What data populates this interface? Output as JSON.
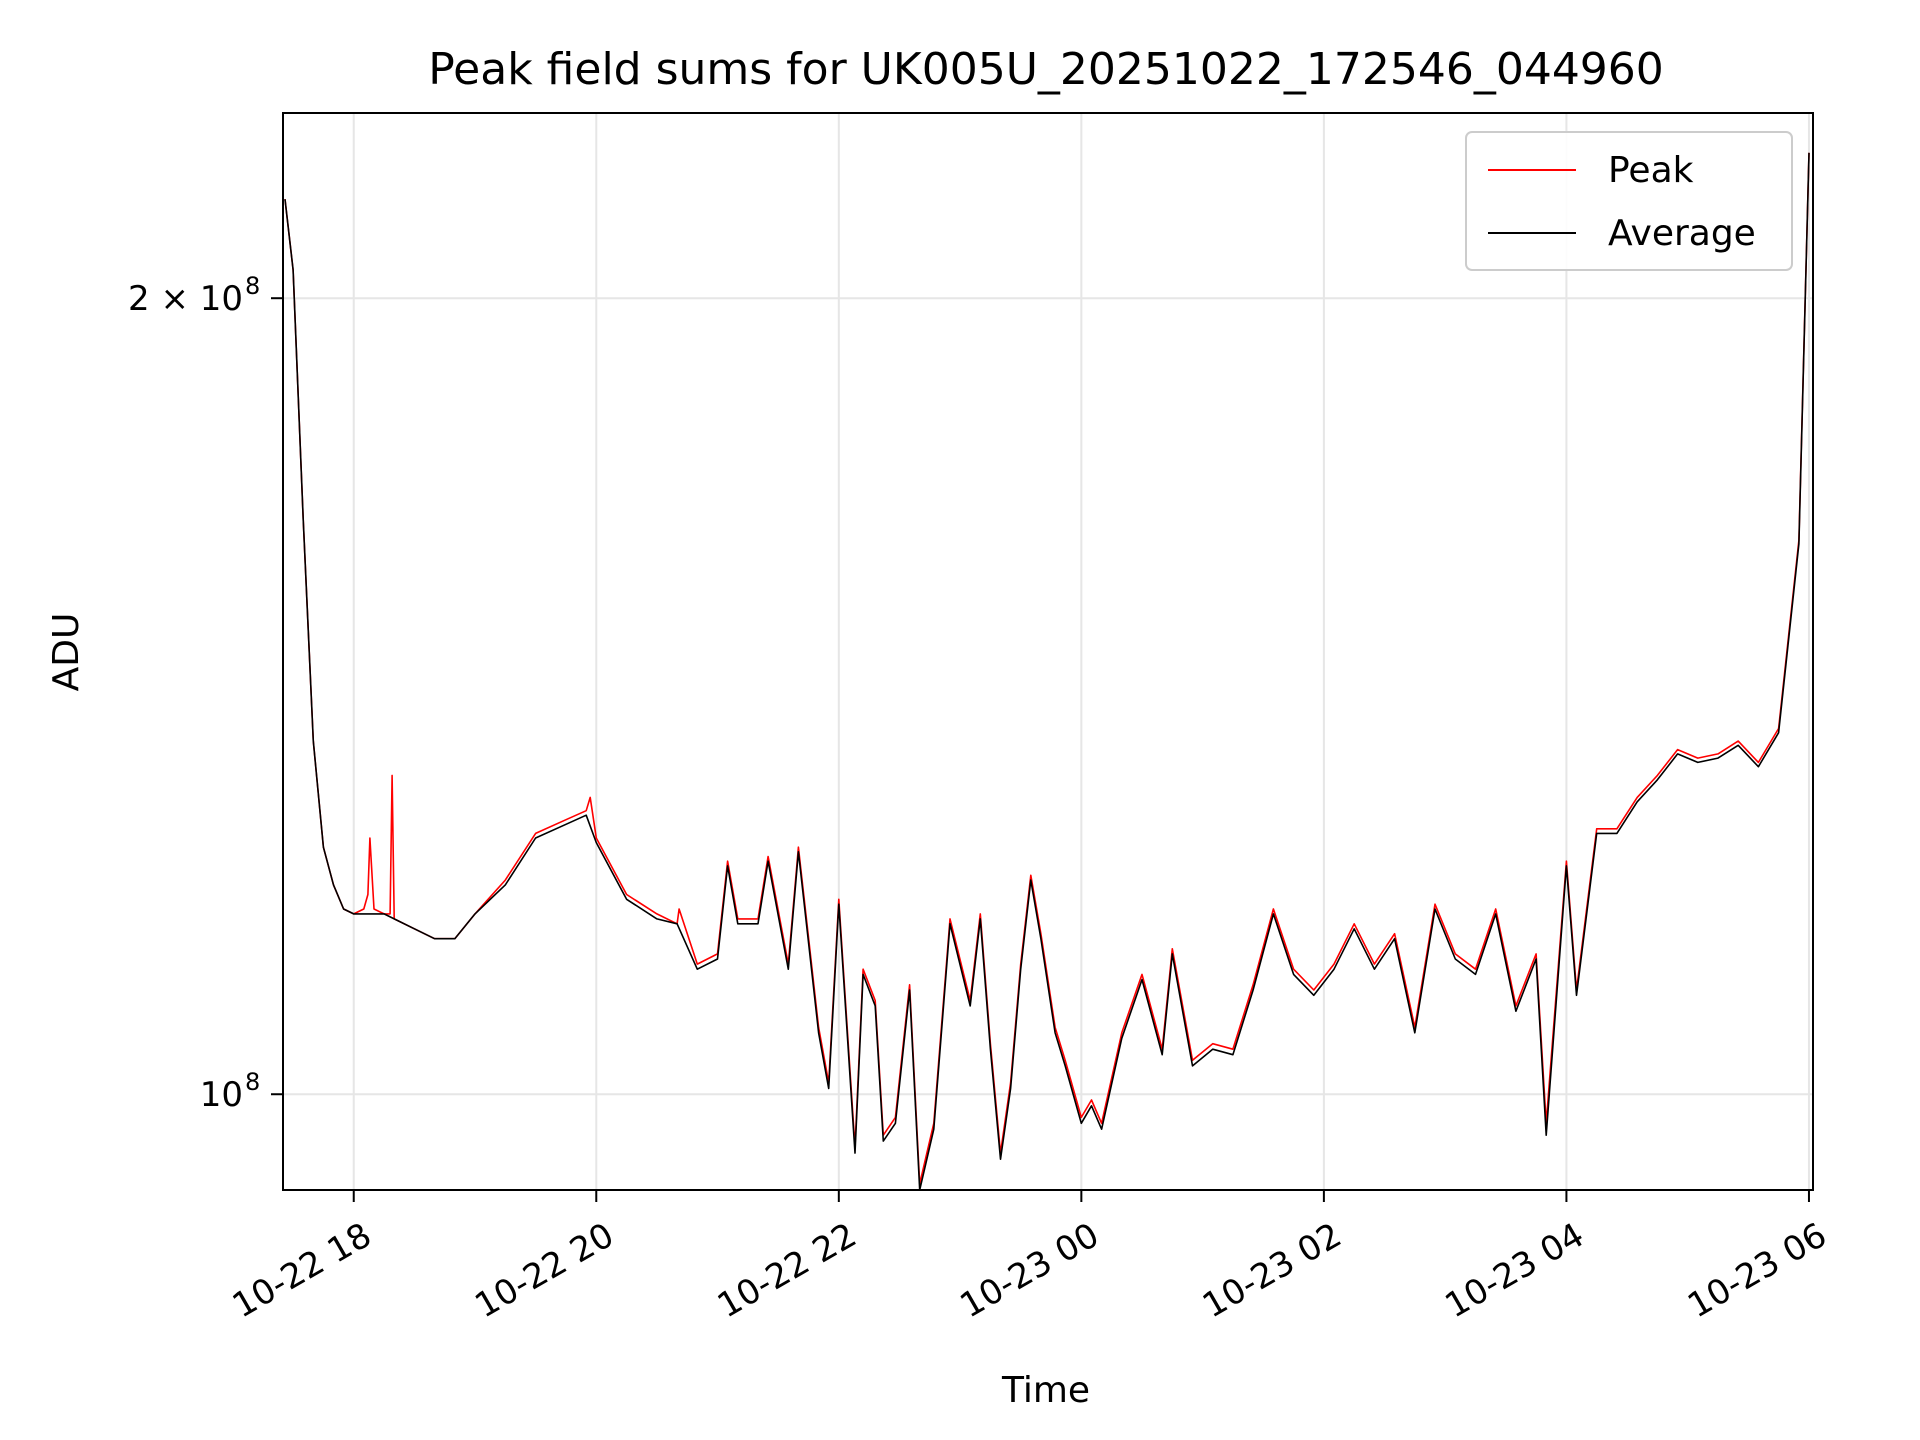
{
  "chart_data": {
    "type": "line",
    "title": "Peak field sums for UK005U_20251022_172546_044960",
    "xlabel": "Time",
    "ylabel": "ADU",
    "yscale": "log",
    "grid": true,
    "legend_position": "top-right",
    "xlim": [
      "2025-10-22 17:25",
      "2025-10-23 06:02"
    ],
    "ylim": [
      92000000,
      235000000
    ],
    "x_ticks": [
      {
        "value": "2025-10-22 18:00",
        "label": "10-22 18"
      },
      {
        "value": "2025-10-22 20:00",
        "label": "10-22 20"
      },
      {
        "value": "2025-10-22 22:00",
        "label": "10-22 22"
      },
      {
        "value": "2025-10-23 00:00",
        "label": "10-23 00"
      },
      {
        "value": "2025-10-23 02:00",
        "label": "10-23 02"
      },
      {
        "value": "2025-10-23 04:00",
        "label": "10-23 04"
      },
      {
        "value": "2025-10-23 06:00",
        "label": "10-23 06"
      }
    ],
    "y_ticks": [
      {
        "value": 100000000,
        "label": "10",
        "sup": "8"
      },
      {
        "value": 200000000,
        "label": "2 × 10",
        "sup": "8"
      }
    ],
    "series": [
      {
        "name": "Peak",
        "color": "#ff0000",
        "x": [
          "2025-10-22 17:26",
          "2025-10-22 17:30",
          "2025-10-22 17:35",
          "2025-10-22 17:40",
          "2025-10-22 17:45",
          "2025-10-22 17:50",
          "2025-10-22 17:55",
          "2025-10-22 18:00",
          "2025-10-22 18:05",
          "2025-10-22 18:07",
          "2025-10-22 18:08",
          "2025-10-22 18:10",
          "2025-10-22 18:15",
          "2025-10-22 18:18",
          "2025-10-22 18:19",
          "2025-10-22 18:20",
          "2025-10-22 18:30",
          "2025-10-22 18:40",
          "2025-10-22 18:50",
          "2025-10-22 19:00",
          "2025-10-22 19:15",
          "2025-10-22 19:30",
          "2025-10-22 19:45",
          "2025-10-22 19:55",
          "2025-10-22 19:57",
          "2025-10-22 20:00",
          "2025-10-22 20:15",
          "2025-10-22 20:30",
          "2025-10-22 20:40",
          "2025-10-22 20:41",
          "2025-10-22 20:50",
          "2025-10-22 21:00",
          "2025-10-22 21:05",
          "2025-10-22 21:10",
          "2025-10-22 21:20",
          "2025-10-22 21:25",
          "2025-10-22 21:35",
          "2025-10-22 21:40",
          "2025-10-22 21:50",
          "2025-10-22 21:55",
          "2025-10-22 22:00",
          "2025-10-22 22:08",
          "2025-10-22 22:12",
          "2025-10-22 22:18",
          "2025-10-22 22:22",
          "2025-10-22 22:28",
          "2025-10-22 22:35",
          "2025-10-22 22:40",
          "2025-10-22 22:47",
          "2025-10-22 22:55",
          "2025-10-22 23:05",
          "2025-10-22 23:10",
          "2025-10-22 23:15",
          "2025-10-22 23:20",
          "2025-10-22 23:25",
          "2025-10-22 23:30",
          "2025-10-22 23:35",
          "2025-10-22 23:40",
          "2025-10-22 23:47",
          "2025-10-22 23:52",
          "2025-10-23 00:00",
          "2025-10-23 00:05",
          "2025-10-23 00:10",
          "2025-10-23 00:20",
          "2025-10-23 00:30",
          "2025-10-23 00:40",
          "2025-10-23 00:45",
          "2025-10-23 00:55",
          "2025-10-23 01:05",
          "2025-10-23 01:15",
          "2025-10-23 01:25",
          "2025-10-23 01:35",
          "2025-10-23 01:45",
          "2025-10-23 01:55",
          "2025-10-23 02:05",
          "2025-10-23 02:15",
          "2025-10-23 02:25",
          "2025-10-23 02:35",
          "2025-10-23 02:45",
          "2025-10-23 02:55",
          "2025-10-23 03:05",
          "2025-10-23 03:15",
          "2025-10-23 03:25",
          "2025-10-23 03:35",
          "2025-10-23 03:45",
          "2025-10-23 03:50",
          "2025-10-23 04:00",
          "2025-10-23 04:05",
          "2025-10-23 04:15",
          "2025-10-23 04:25",
          "2025-10-23 04:35",
          "2025-10-23 04:45",
          "2025-10-23 04:55",
          "2025-10-23 05:05",
          "2025-10-23 05:15",
          "2025-10-23 05:25",
          "2025-10-23 05:35",
          "2025-10-23 05:45",
          "2025-10-23 05:55",
          "2025-10-23 06:00"
        ],
        "y": [
          218000000,
          205000000,
          165000000,
          136000000,
          124000000,
          120000000,
          117500000,
          117000000,
          117500000,
          119000000,
          125000000,
          117500000,
          117000000,
          117000000,
          132000000,
          116500000,
          115500000,
          114500000,
          114500000,
          117000000,
          120500000,
          125500000,
          127000000,
          128000000,
          129500000,
          125000000,
          119000000,
          117000000,
          116000000,
          117500000,
          112000000,
          113000000,
          122500000,
          116500000,
          116500000,
          123000000,
          112000000,
          124000000,
          106000000,
          101000000,
          118500000,
          95500000,
          111500000,
          108500000,
          96500000,
          98000000,
          110000000,
          92500000,
          97500000,
          116500000,
          108500000,
          117000000,
          104500000,
          95000000,
          101000000,
          112000000,
          121000000,
          115000000,
          106000000,
          103000000,
          98000000,
          99500000,
          97500000,
          105500000,
          111000000,
          104000000,
          113500000,
          103000000,
          104500000,
          104000000,
          110000000,
          117500000,
          111500000,
          109500000,
          112000000,
          116000000,
          112000000,
          115000000,
          106000000,
          118000000,
          113000000,
          111500000,
          117500000,
          108000000,
          113000000,
          97500000,
          122500000,
          109500000,
          126000000,
          126000000,
          129500000,
          132000000,
          135000000,
          134000000,
          134500000,
          136000000,
          133500000,
          137500000,
          162000000,
          227000000
        ]
      },
      {
        "name": "Average",
        "color": "#000000",
        "x": [
          "2025-10-22 17:26",
          "2025-10-22 17:30",
          "2025-10-22 17:35",
          "2025-10-22 17:40",
          "2025-10-22 17:45",
          "2025-10-22 17:50",
          "2025-10-22 17:55",
          "2025-10-22 18:00",
          "2025-10-22 18:05",
          "2025-10-22 18:10",
          "2025-10-22 18:15",
          "2025-10-22 18:20",
          "2025-10-22 18:30",
          "2025-10-22 18:40",
          "2025-10-22 18:50",
          "2025-10-22 19:00",
          "2025-10-22 19:15",
          "2025-10-22 19:30",
          "2025-10-22 19:45",
          "2025-10-22 19:55",
          "2025-10-22 20:00",
          "2025-10-22 20:15",
          "2025-10-22 20:30",
          "2025-10-22 20:40",
          "2025-10-22 20:50",
          "2025-10-22 21:00",
          "2025-10-22 21:05",
          "2025-10-22 21:10",
          "2025-10-22 21:20",
          "2025-10-22 21:25",
          "2025-10-22 21:35",
          "2025-10-22 21:40",
          "2025-10-22 21:50",
          "2025-10-22 21:55",
          "2025-10-22 22:00",
          "2025-10-22 22:08",
          "2025-10-22 22:12",
          "2025-10-22 22:18",
          "2025-10-22 22:22",
          "2025-10-22 22:28",
          "2025-10-22 22:35",
          "2025-10-22 22:40",
          "2025-10-22 22:47",
          "2025-10-22 22:55",
          "2025-10-22 23:05",
          "2025-10-22 23:10",
          "2025-10-22 23:15",
          "2025-10-22 23:20",
          "2025-10-22 23:25",
          "2025-10-22 23:30",
          "2025-10-22 23:35",
          "2025-10-22 23:40",
          "2025-10-22 23:47",
          "2025-10-22 23:52",
          "2025-10-23 00:00",
          "2025-10-23 00:05",
          "2025-10-23 00:10",
          "2025-10-23 00:20",
          "2025-10-23 00:30",
          "2025-10-23 00:40",
          "2025-10-23 00:45",
          "2025-10-23 00:55",
          "2025-10-23 01:05",
          "2025-10-23 01:15",
          "2025-10-23 01:25",
          "2025-10-23 01:35",
          "2025-10-23 01:45",
          "2025-10-23 01:55",
          "2025-10-23 02:05",
          "2025-10-23 02:15",
          "2025-10-23 02:25",
          "2025-10-23 02:35",
          "2025-10-23 02:45",
          "2025-10-23 02:55",
          "2025-10-23 03:05",
          "2025-10-23 03:15",
          "2025-10-23 03:25",
          "2025-10-23 03:35",
          "2025-10-23 03:45",
          "2025-10-23 03:50",
          "2025-10-23 04:00",
          "2025-10-23 04:05",
          "2025-10-23 04:15",
          "2025-10-23 04:25",
          "2025-10-23 04:35",
          "2025-10-23 04:45",
          "2025-10-23 04:55",
          "2025-10-23 05:05",
          "2025-10-23 05:15",
          "2025-10-23 05:25",
          "2025-10-23 05:35",
          "2025-10-23 05:45",
          "2025-10-23 05:55",
          "2025-10-23 06:00"
        ],
        "y": [
          218000000,
          205000000,
          165000000,
          136000000,
          124000000,
          120000000,
          117500000,
          117000000,
          117000000,
          117000000,
          117000000,
          116500000,
          115500000,
          114500000,
          114500000,
          117000000,
          120000000,
          125000000,
          126500000,
          127500000,
          124500000,
          118500000,
          116500000,
          116000000,
          111500000,
          112500000,
          122000000,
          116000000,
          116000000,
          122500000,
          111500000,
          123500000,
          105500000,
          100500000,
          118000000,
          95000000,
          111000000,
          108000000,
          96000000,
          97500000,
          109500000,
          92000000,
          97000000,
          116000000,
          108000000,
          116500000,
          104000000,
          94500000,
          100500000,
          111500000,
          120500000,
          114500000,
          105500000,
          102500000,
          97500000,
          99000000,
          97000000,
          105000000,
          110500000,
          103500000,
          113000000,
          102500000,
          104000000,
          103500000,
          109500000,
          117000000,
          111000000,
          109000000,
          111500000,
          115500000,
          111500000,
          114500000,
          105500000,
          117500000,
          112500000,
          111000000,
          117000000,
          107500000,
          112500000,
          96500000,
          122000000,
          109000000,
          125500000,
          125500000,
          129000000,
          131500000,
          134500000,
          133500000,
          134000000,
          135500000,
          133000000,
          137000000,
          161500000,
          227000000
        ]
      }
    ]
  }
}
